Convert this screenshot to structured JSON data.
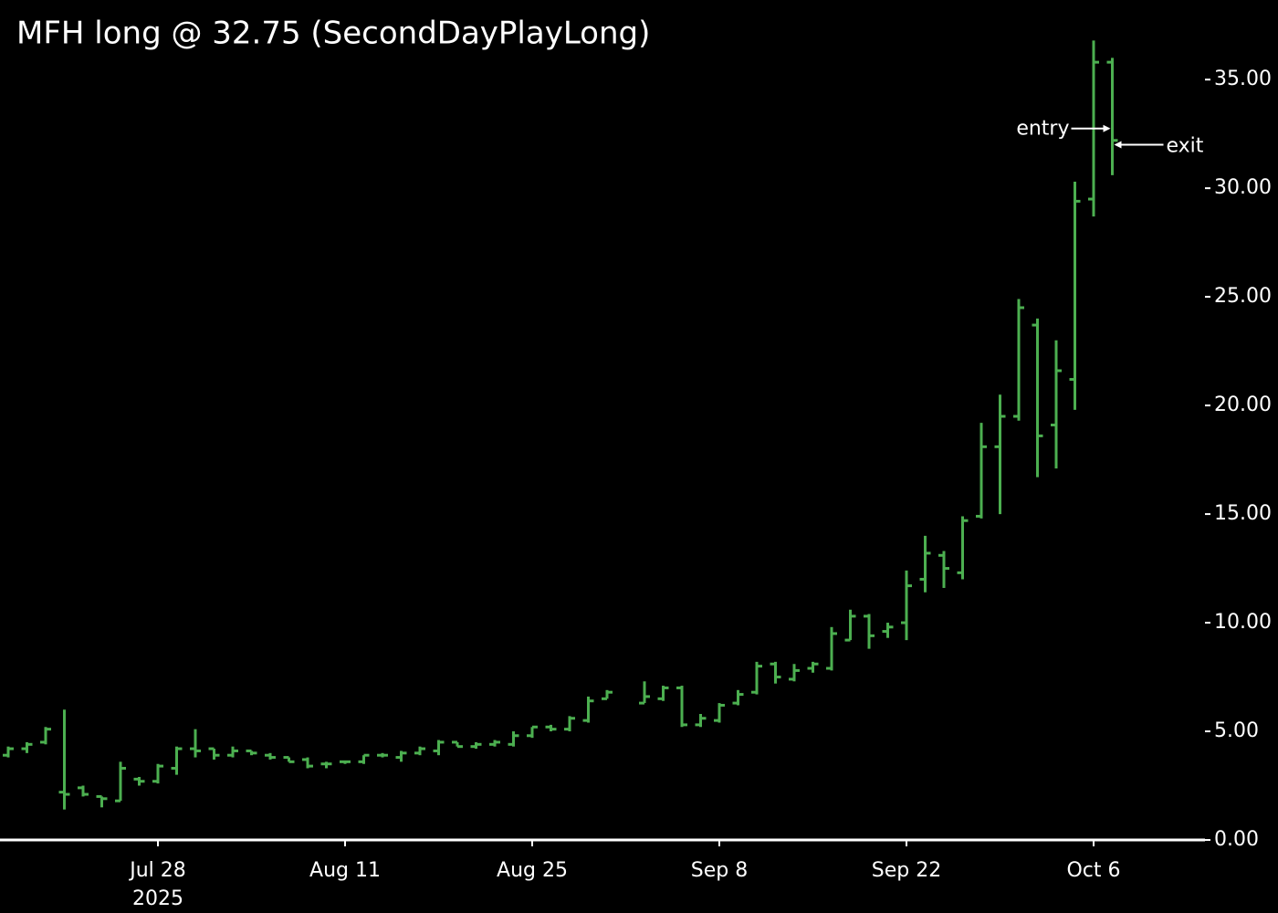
{
  "chart_data": {
    "type": "ohlc",
    "title": "MFH long @ 32.75 (SecondDayPlayLong)",
    "color": "#4caf50",
    "x": [
      "2025-07-16",
      "2025-07-17",
      "2025-07-18",
      "2025-07-21",
      "2025-07-22",
      "2025-07-23",
      "2025-07-24",
      "2025-07-25",
      "2025-07-28",
      "2025-07-29",
      "2025-07-30",
      "2025-07-31",
      "2025-08-01",
      "2025-08-04",
      "2025-08-05",
      "2025-08-06",
      "2025-08-07",
      "2025-08-08",
      "2025-08-11",
      "2025-08-12",
      "2025-08-13",
      "2025-08-14",
      "2025-08-15",
      "2025-08-18",
      "2025-08-19",
      "2025-08-20",
      "2025-08-21",
      "2025-08-22",
      "2025-08-25",
      "2025-08-26",
      "2025-08-27",
      "2025-08-28",
      "2025-08-29",
      "2025-09-01",
      "2025-09-02",
      "2025-09-03",
      "2025-09-04",
      "2025-09-05",
      "2025-09-08",
      "2025-09-09",
      "2025-09-10",
      "2025-09-11",
      "2025-09-12",
      "2025-09-15",
      "2025-09-16",
      "2025-09-17",
      "2025-09-18",
      "2025-09-19",
      "2025-09-22",
      "2025-09-23",
      "2025-09-24",
      "2025-09-25",
      "2025-09-26",
      "2025-09-29",
      "2025-09-30",
      "2025-10-01",
      "2025-10-02",
      "2025-10-03",
      "2025-10-06",
      "2025-10-07"
    ],
    "open": [
      3.9,
      4.2,
      4.5,
      2.2,
      2.4,
      2.0,
      1.8,
      2.8,
      2.7,
      3.3,
      4.2,
      4.2,
      3.9,
      4.1,
      3.9,
      3.8,
      3.7,
      3.5,
      3.6,
      3.6,
      3.9,
      3.8,
      4.0,
      4.1,
      4.5,
      4.3,
      4.4,
      4.4,
      4.8,
      5.2,
      5.1,
      5.5,
      6.5,
      null,
      6.3,
      6.5,
      7.0,
      5.3,
      5.5,
      6.3,
      6.8,
      8.1,
      7.4,
      7.9,
      7.9,
      9.2,
      10.3,
      9.6,
      10.0,
      12.0,
      13.1,
      12.3,
      14.9,
      18.1,
      19.5,
      23.7,
      19.1,
      21.2,
      29.5,
      35.8
    ],
    "high": [
      4.3,
      4.5,
      5.2,
      6.0,
      2.5,
      2.0,
      3.6,
      2.9,
      3.5,
      4.3,
      5.1,
      4.2,
      4.3,
      4.1,
      4.0,
      3.8,
      3.8,
      3.6,
      3.6,
      3.9,
      4.0,
      4.1,
      4.3,
      4.6,
      4.5,
      4.5,
      4.6,
      5.0,
      5.2,
      5.3,
      5.7,
      6.6,
      6.9,
      null,
      7.3,
      7.1,
      7.1,
      5.8,
      6.3,
      6.9,
      8.2,
      8.2,
      8.1,
      8.2,
      9.8,
      10.6,
      10.4,
      10.0,
      12.4,
      14.0,
      13.3,
      14.9,
      19.2,
      20.5,
      24.9,
      24.0,
      23.0,
      30.3,
      36.8,
      36.0
    ],
    "low": [
      3.8,
      4.0,
      4.4,
      1.4,
      2.0,
      1.5,
      1.8,
      2.5,
      2.6,
      3.0,
      3.8,
      3.7,
      3.8,
      3.9,
      3.7,
      3.6,
      3.3,
      3.3,
      3.5,
      3.5,
      3.8,
      3.6,
      3.9,
      3.9,
      4.3,
      4.2,
      4.3,
      4.3,
      4.7,
      5.0,
      5.0,
      5.4,
      6.5,
      null,
      6.3,
      6.4,
      5.2,
      5.2,
      5.4,
      6.2,
      6.7,
      7.2,
      7.3,
      7.7,
      7.8,
      9.2,
      8.8,
      9.3,
      9.2,
      11.4,
      11.6,
      12.0,
      14.8,
      15.0,
      19.3,
      16.7,
      17.1,
      19.8,
      28.7,
      30.6
    ],
    "close": [
      4.2,
      4.4,
      5.1,
      2.1,
      2.1,
      1.9,
      3.3,
      2.7,
      3.4,
      4.2,
      4.1,
      3.9,
      4.1,
      4.0,
      3.8,
      3.6,
      3.4,
      3.5,
      3.6,
      3.9,
      3.9,
      4.0,
      4.2,
      4.5,
      4.3,
      4.4,
      4.5,
      4.8,
      5.2,
      5.1,
      5.6,
      6.4,
      6.8,
      null,
      6.6,
      7.0,
      5.3,
      5.6,
      6.2,
      6.7,
      8.0,
      7.5,
      7.8,
      8.1,
      9.5,
      10.3,
      9.4,
      9.8,
      11.7,
      13.2,
      12.5,
      14.7,
      18.1,
      19.5,
      24.5,
      18.6,
      21.6,
      29.4,
      35.8,
      32.2
    ],
    "ylim": [
      0,
      37.15
    ],
    "yticks": [
      {
        "value": 0,
        "label": "0.00"
      },
      {
        "value": 5,
        "label": "5.00"
      },
      {
        "value": 10,
        "label": "10.00"
      },
      {
        "value": 15,
        "label": "15.00"
      },
      {
        "value": 20,
        "label": "20.00"
      },
      {
        "value": 25,
        "label": "25.00"
      },
      {
        "value": 30,
        "label": "30.00"
      },
      {
        "value": 35,
        "label": "35.00"
      }
    ],
    "xticks": [
      {
        "value": "2025-07-28",
        "label": "Jul 28",
        "sublabel": "2025"
      },
      {
        "value": "2025-08-11",
        "label": "Aug 11"
      },
      {
        "value": "2025-08-25",
        "label": "Aug 25"
      },
      {
        "value": "2025-09-08",
        "label": "Sep 8"
      },
      {
        "value": "2025-09-22",
        "label": "Sep 22"
      },
      {
        "value": "2025-10-06",
        "label": "Oct 6"
      }
    ],
    "annotations": [
      {
        "text": "entry",
        "value": 32.75,
        "side": "left"
      },
      {
        "text": "exit",
        "value": 32.0,
        "side": "right"
      }
    ]
  }
}
